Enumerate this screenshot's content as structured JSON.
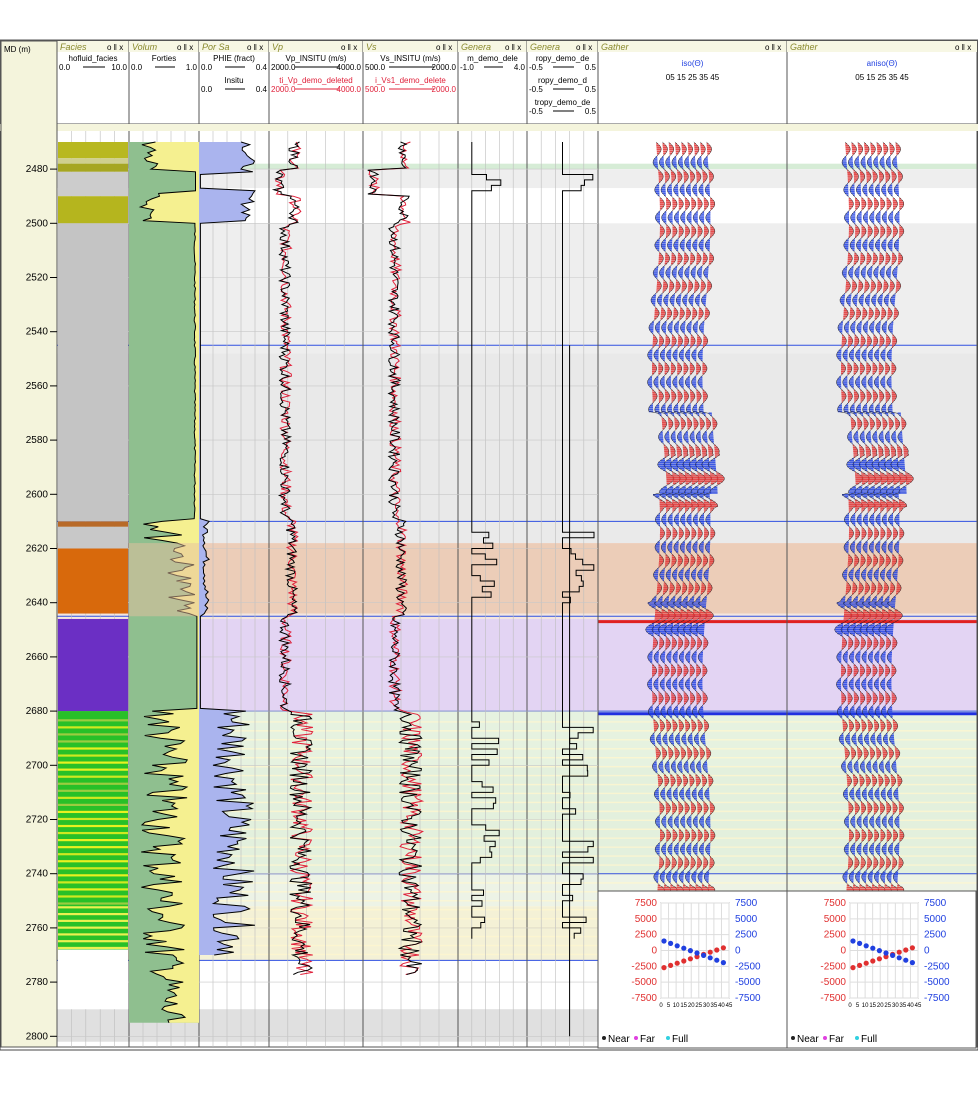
{
  "depth_axis": {
    "title": "MD (m)",
    "ticks": [
      "2480",
      "2500",
      "2520",
      "2540",
      "2560",
      "2580",
      "2600",
      "2620",
      "2640",
      "2660",
      "2680",
      "2700",
      "2720",
      "2740",
      "2760",
      "2780",
      "2800"
    ]
  },
  "tracks": [
    {
      "title": "Facies",
      "curves": [
        {
          "name": "hofluid_facies",
          "min": "0.0",
          "max": "10.0",
          "color": "#000000"
        }
      ]
    },
    {
      "title": "Volum",
      "curves": [
        {
          "name": "Forties",
          "min": "0.0",
          "max": "1.0",
          "color": "#000000"
        }
      ]
    },
    {
      "title": "Por Sa",
      "curves": [
        {
          "name": "PHIE (fract)",
          "min": "0.0",
          "max": "0.4",
          "color": "#000000"
        },
        {
          "name": "Insitu",
          "min": "0.0",
          "max": "0.4",
          "color": "#000000"
        }
      ]
    },
    {
      "title": "Vp",
      "curves": [
        {
          "name": "Vp_INSITU (m/s)",
          "min": "2000.0",
          "max": "4000.0",
          "color": "#000000"
        },
        {
          "name": "ti_Vp_demo_deleted",
          "min": "2000.0",
          "max": "4000.0",
          "color": "#e0203a"
        }
      ]
    },
    {
      "title": "Vs",
      "curves": [
        {
          "name": "Vs_INSITU (m/s)",
          "min": "500.0",
          "max": "2000.0",
          "color": "#000000"
        },
        {
          "name": "i_Vs1_demo_delete",
          "min": "500.0",
          "max": "2000.0",
          "color": "#e0203a"
        }
      ]
    },
    {
      "title": "Genera",
      "curves": [
        {
          "name": "m_demo_dele",
          "min": "-1.0",
          "max": "4.0",
          "color": "#000000"
        }
      ]
    },
    {
      "title": "Genera",
      "curves": [
        {
          "name": "ropy_demo_de",
          "min": "-0.5",
          "max": "0.5",
          "color": "#000000"
        },
        {
          "name": "ropy_demo_d",
          "min": "-0.5",
          "max": "0.5",
          "color": "#000000"
        },
        {
          "name": "tropy_demo_de",
          "min": "-0.5",
          "max": "0.5",
          "color": "#000000"
        }
      ]
    },
    {
      "title": "Gather",
      "label": "iso(Θ)",
      "angles": "05 15 25 35 45"
    },
    {
      "title": "Gather",
      "label": "aniso(Θ)",
      "angles": "05 15 25 35 45"
    }
  ],
  "track_buttons": "o ‖ x",
  "avo_inset": {
    "left_ticks": [
      "7500",
      "5000",
      "2500",
      "0",
      "-2500",
      "-5000",
      "-7500"
    ],
    "right_ticks": [
      "7500",
      "5000",
      "2500",
      "0",
      "-2500",
      "-5000",
      "-7500"
    ],
    "x_ticks": [
      "0",
      "5",
      "10",
      "15",
      "20",
      "25",
      "30",
      "35",
      "40",
      "45"
    ],
    "legend": [
      {
        "label": "Near",
        "color": "#222222"
      },
      {
        "label": "Far",
        "color": "#e040e0"
      },
      {
        "label": "Full",
        "color": "#30d0e0"
      }
    ],
    "colors": {
      "left": "#e03030",
      "right": "#2040e0"
    }
  },
  "colors": {
    "header_bg": "#f4f4dc",
    "wiggle_pos": "#e03030",
    "wiggle_neg": "#2040e0",
    "top_red": "#e02020",
    "top_blue": "#2030e0"
  }
}
